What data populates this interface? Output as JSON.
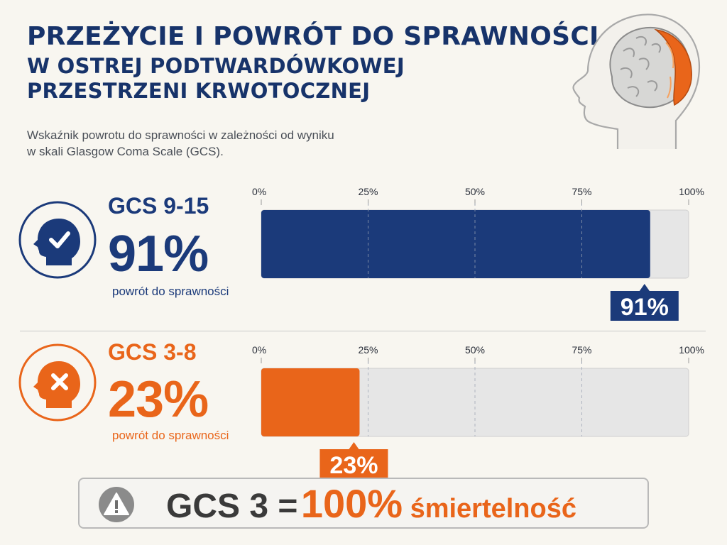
{
  "header": {
    "title_line1": "PRZEŻYCIE I POWRÓT DO SPRAWNOŚCI",
    "title_line2": "W OSTREJ PODTWARDÓWKOWEJ",
    "title_line3": "PRZESTRZENI KRWOTOCZNEJ",
    "subtitle_line1": "Wskaźnik powrotu do sprawności w zależności od wyniku",
    "subtitle_line2": "w skali Glasgow Coma Scale (GCS)."
  },
  "colors": {
    "navy": "#1b3a7a",
    "orange": "#e9651a",
    "bar_background": "#e6e6e6",
    "accent_brain": "#e9651a"
  },
  "groups": [
    {
      "label": "GCS 9-15",
      "percent_text": "91%",
      "caption": "powrót do sprawności",
      "icon": "head-checkmark-icon",
      "color": "#1b3a7a"
    },
    {
      "label": "GCS 3-8",
      "percent_text": "23%",
      "caption": "powrót do sprawności",
      "icon": "head-x-icon",
      "color": "#e9651a"
    }
  ],
  "chart_data": [
    {
      "type": "bar",
      "orientation": "horizontal",
      "categories": [
        "GCS 9-15"
      ],
      "values": [
        91
      ],
      "value_labels": [
        "91%"
      ],
      "xlim": [
        0,
        100
      ],
      "ticks": [
        "0%",
        "25%",
        "50%",
        "75%",
        "100%"
      ],
      "gridlines": "dashed",
      "bar_color": "#1b3a7a",
      "label_position": "below"
    },
    {
      "type": "bar",
      "orientation": "horizontal",
      "categories": [
        "GCS 3-8"
      ],
      "values": [
        23
      ],
      "value_labels": [
        "23%"
      ],
      "xlim": [
        0,
        100
      ],
      "ticks": [
        "0%",
        "25%",
        "50%",
        "75%",
        "100%"
      ],
      "gridlines": "dashed",
      "bar_color": "#e9651a",
      "label_position": "below"
    }
  ],
  "footer": {
    "icon": "warning-triangle-icon",
    "text_left": "GCS 3 =",
    "text_value": "100%",
    "text_right": "śmiertelność"
  }
}
